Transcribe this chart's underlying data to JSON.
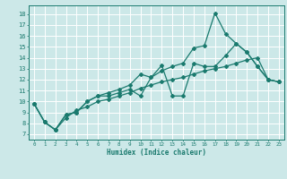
{
  "title": "",
  "xlabel": "Humidex (Indice chaleur)",
  "bg_color": "#cce8e8",
  "grid_color": "#ffffff",
  "line_color": "#1a7a6e",
  "xlim": [
    -0.5,
    23.5
  ],
  "ylim": [
    6.5,
    18.8
  ],
  "xticks": [
    0,
    1,
    2,
    3,
    4,
    5,
    6,
    7,
    8,
    9,
    10,
    11,
    12,
    13,
    14,
    15,
    16,
    17,
    18,
    19,
    20,
    21,
    22,
    23
  ],
  "yticks": [
    7,
    8,
    9,
    10,
    11,
    12,
    13,
    14,
    15,
    16,
    17,
    18
  ],
  "series": [
    [
      9.8,
      8.1,
      7.4,
      8.8,
      9.0,
      10.0,
      10.5,
      10.5,
      10.8,
      11.1,
      10.5,
      12.2,
      12.8,
      13.2,
      13.5,
      14.9,
      15.1,
      18.1,
      16.2,
      15.3,
      14.5,
      13.2,
      12.0,
      11.8
    ],
    [
      9.8,
      8.1,
      7.4,
      8.8,
      9.0,
      10.0,
      10.5,
      10.8,
      11.1,
      11.5,
      12.5,
      12.2,
      13.3,
      10.5,
      10.5,
      13.5,
      13.2,
      13.2,
      14.2,
      15.3,
      14.5,
      13.2,
      12.0,
      11.8
    ],
    [
      9.8,
      8.1,
      7.4,
      8.5,
      9.2,
      9.5,
      10.0,
      10.2,
      10.5,
      10.8,
      11.2,
      11.5,
      11.8,
      12.0,
      12.2,
      12.5,
      12.8,
      13.0,
      13.2,
      13.5,
      13.8,
      14.0,
      12.0,
      11.8
    ]
  ]
}
